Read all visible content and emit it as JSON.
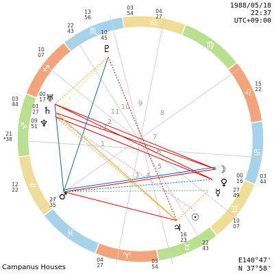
{
  "header": {
    "date": "1988/05/18",
    "time": "22:37",
    "timezone": "UTC+09:00"
  },
  "footer": {
    "house_system": "Campanus Houses",
    "longitude": "E140°47'",
    "latitude": "N 37°58'"
  },
  "asc_marker": "*",
  "signs": [
    "♈",
    "♉",
    "♊",
    "♋",
    "♌",
    "♍",
    "♎",
    "♏",
    "♐",
    "♑",
    "♒",
    "♓"
  ],
  "houses": [
    "1",
    "2",
    "3",
    "4",
    "5",
    "6",
    "7",
    "8",
    "9",
    "10",
    "11",
    "12"
  ],
  "planets": [
    "♇",
    "♅",
    "♄",
    "♆",
    "☽",
    "♀",
    "☿",
    "♂",
    "♃",
    "☉"
  ],
  "cusp_labels": [
    {
      "deg": "13",
      "min": "56"
    },
    {
      "deg": "03",
      "min": "54"
    },
    {
      "deg": "04",
      "min": "27"
    },
    {
      "deg": "22",
      "min": "43"
    },
    {
      "deg": "10",
      "min": "45"
    },
    {
      "deg": "10",
      "min": "07"
    },
    {
      "deg": "15",
      "min": "22"
    },
    {
      "deg": "03",
      "min": "44"
    },
    {
      "deg": "00",
      "min": "17"
    },
    {
      "deg": "01",
      "min": "27"
    },
    {
      "deg": "09",
      "min": "51"
    },
    {
      "deg": "21",
      "min": "38"
    },
    {
      "deg": "12",
      "min": "22"
    },
    {
      "deg": "27",
      "min": "35"
    },
    {
      "deg": "00",
      "min": "16"
    },
    {
      "deg": "03",
      "min": "44"
    },
    {
      "deg": "27",
      "min": "49"
    },
    {
      "deg": "10",
      "min": "07"
    },
    {
      "deg": "16",
      "min": "23"
    },
    {
      "deg": "22",
      "min": "43"
    },
    {
      "deg": "04",
      "min": "27"
    },
    {
      "deg": "03",
      "min": "54"
    }
  ]
}
